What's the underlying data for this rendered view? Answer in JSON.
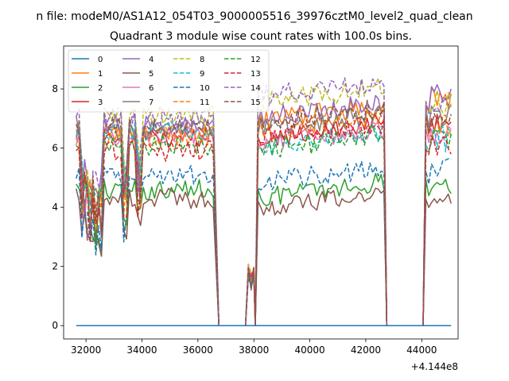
{
  "figure": {
    "suptitle": "n file: modeM0/AS1A12_054T03_9000005516_39976cztM0_level2_quad_clean"
  },
  "chart_data": {
    "type": "line",
    "title": "Quadrant 3 module wise count rates with 100.0s bins.",
    "xlabel": "",
    "ylabel": "",
    "x_offset_label": "+4.144e8",
    "xlim": [
      31200,
      45300
    ],
    "ylim": [
      -0.45,
      9.45
    ],
    "x_ticks": [
      32000,
      34000,
      36000,
      38000,
      40000,
      42000,
      44000
    ],
    "y_ticks": [
      0,
      2,
      4,
      6,
      8
    ],
    "grid": false,
    "legend_position": "top-left",
    "legend_columns": 4,
    "segments": {
      "seg1": [
        31650,
        36550
      ],
      "gap1": [
        36750,
        37700
      ],
      "spike": [
        37700,
        38050
      ],
      "seg2": [
        38150,
        42700
      ],
      "gap2": [
        42750,
        44050
      ],
      "seg3": [
        44150,
        45050
      ],
      "x_end": 45050
    },
    "series": [
      {
        "name": "0",
        "color": "#1f77b4",
        "dash": false,
        "flat": true,
        "levels": [
          0,
          0,
          0
        ]
      },
      {
        "name": "1",
        "color": "#ff7f0e",
        "dash": false,
        "levels": [
          6.5,
          7.2,
          7.6
        ]
      },
      {
        "name": "2",
        "color": "#2ca02c",
        "dash": false,
        "levels": [
          4.6,
          4.6,
          4.8
        ]
      },
      {
        "name": "3",
        "color": "#d62728",
        "dash": false,
        "levels": [
          6.3,
          6.6,
          6.9
        ]
      },
      {
        "name": "4",
        "color": "#9467bd",
        "dash": false,
        "levels": [
          6.8,
          7.3,
          7.7
        ]
      },
      {
        "name": "5",
        "color": "#8c564b",
        "dash": false,
        "levels": [
          4.3,
          4.2,
          4.4
        ]
      },
      {
        "name": "6",
        "color": "#e377c2",
        "dash": false,
        "levels": [
          6.4,
          6.4,
          6.6
        ]
      },
      {
        "name": "7",
        "color": "#7f7f7f",
        "dash": false,
        "levels": [
          6.6,
          6.9,
          7.1
        ]
      },
      {
        "name": "8",
        "color": "#bcbd22",
        "dash": true,
        "levels": [
          7.1,
          7.8,
          7.6
        ]
      },
      {
        "name": "9",
        "color": "#17becf",
        "dash": true,
        "levels": [
          6.6,
          6.3,
          6.3
        ]
      },
      {
        "name": "10",
        "color": "#1f77b4",
        "dash": true,
        "levels": [
          5.1,
          5.1,
          5.2
        ]
      },
      {
        "name": "11",
        "color": "#ff7f0e",
        "dash": true,
        "levels": [
          6.4,
          6.8,
          6.8
        ]
      },
      {
        "name": "12",
        "color": "#2ca02c",
        "dash": true,
        "levels": [
          6.1,
          6.2,
          6.3
        ]
      },
      {
        "name": "13",
        "color": "#d62728",
        "dash": true,
        "levels": [
          5.9,
          6.6,
          6.2
        ]
      },
      {
        "name": "14",
        "color": "#9467bd",
        "dash": true,
        "levels": [
          7.0,
          8.0,
          7.6
        ]
      },
      {
        "name": "15",
        "color": "#8c564b",
        "dash": true,
        "levels": [
          6.7,
          7.1,
          6.9
        ]
      }
    ]
  }
}
